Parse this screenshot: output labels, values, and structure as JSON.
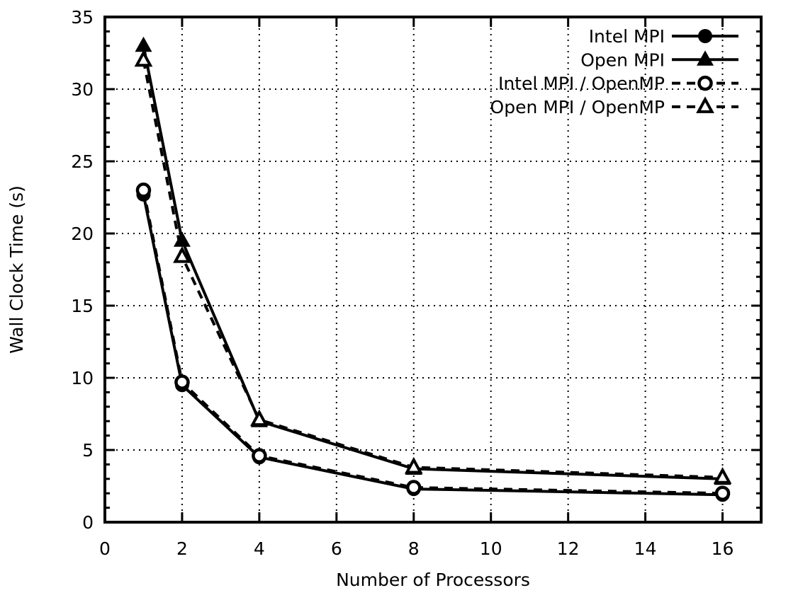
{
  "chart_data": {
    "type": "line",
    "title": "",
    "xlabel": "Number of Processors",
    "ylabel": "Wall Clock Time (s)",
    "xlim": [
      0,
      17
    ],
    "ylim": [
      0,
      35
    ],
    "x_ticks": [
      0,
      2,
      4,
      6,
      8,
      10,
      12,
      14,
      16
    ],
    "y_ticks": [
      0,
      5,
      10,
      15,
      20,
      25,
      30,
      35
    ],
    "y_minor_step": 1,
    "grid": true,
    "grid_style": "dotted",
    "legend_position": "top-right",
    "x": [
      1,
      2,
      4,
      8,
      16
    ],
    "series": [
      {
        "name": "Intel MPI",
        "values": [
          22.7,
          9.5,
          4.5,
          2.3,
          1.9
        ],
        "line": "solid",
        "marker": "circle-filled"
      },
      {
        "name": "Open MPI",
        "values": [
          33.0,
          19.5,
          7.0,
          3.7,
          3.0
        ],
        "line": "solid",
        "marker": "triangle-filled"
      },
      {
        "name": "Intel MPI / OpenMP",
        "values": [
          23.0,
          9.7,
          4.6,
          2.4,
          2.0
        ],
        "line": "dashed",
        "marker": "circle-open"
      },
      {
        "name": "Open MPI / OpenMP",
        "values": [
          32.0,
          18.4,
          7.1,
          3.8,
          3.1
        ],
        "line": "dashed",
        "marker": "triangle-open"
      }
    ],
    "colors": {
      "foreground": "#000000",
      "background": "#ffffff"
    }
  }
}
